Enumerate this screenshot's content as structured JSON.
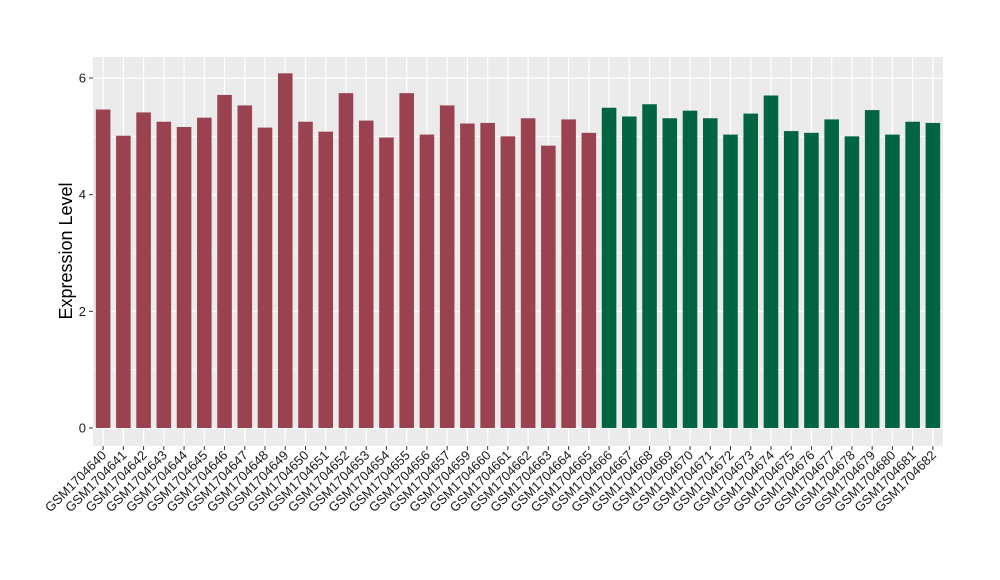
{
  "chart_data": {
    "type": "bar",
    "title": "",
    "xlabel": "",
    "ylabel": "Expression Level",
    "ylim": [
      0,
      6.25
    ],
    "yticks": [
      0,
      2,
      4,
      6
    ],
    "grid": true,
    "legend": "none",
    "colors": {
      "group1": "#9a4250",
      "group2": "#006540",
      "panel": "#ebebeb",
      "grid": "#ffffff"
    },
    "categories": [
      "GSM1704640",
      "GSM1704641",
      "GSM1704642",
      "GSM1704643",
      "GSM1704644",
      "GSM1704645",
      "GSM1704646",
      "GSM1704647",
      "GSM1704648",
      "GSM1704649",
      "GSM1704650",
      "GSM1704651",
      "GSM1704652",
      "GSM1704653",
      "GSM1704654",
      "GSM1704655",
      "GSM1704656",
      "GSM1704657",
      "GSM1704659",
      "GSM1704660",
      "GSM1704661",
      "GSM1704662",
      "GSM1704663",
      "GSM1704664",
      "GSM1704665",
      "GSM1704666",
      "GSM1704667",
      "GSM1704668",
      "GSM1704669",
      "GSM1704670",
      "GSM1704671",
      "GSM1704672",
      "GSM1704673",
      "GSM1704674",
      "GSM1704675",
      "GSM1704676",
      "GSM1704677",
      "GSM1704678",
      "GSM1704679",
      "GSM1704680",
      "GSM1704681",
      "GSM1704682"
    ],
    "values": [
      5.46,
      5.01,
      5.41,
      5.25,
      5.16,
      5.32,
      5.71,
      5.53,
      5.15,
      6.08,
      5.25,
      5.08,
      5.74,
      5.27,
      4.98,
      5.74,
      5.03,
      5.53,
      5.22,
      5.23,
      5.0,
      5.31,
      4.84,
      5.29,
      5.06,
      5.49,
      5.34,
      5.55,
      5.31,
      5.44,
      5.31,
      5.03,
      5.39,
      5.7,
      5.09,
      5.06,
      5.29,
      5.0,
      5.45,
      5.03,
      5.25,
      5.23
    ],
    "groups": [
      1,
      1,
      1,
      1,
      1,
      1,
      1,
      1,
      1,
      1,
      1,
      1,
      1,
      1,
      1,
      1,
      1,
      1,
      1,
      1,
      1,
      1,
      1,
      1,
      1,
      2,
      2,
      2,
      2,
      2,
      2,
      2,
      2,
      2,
      2,
      2,
      2,
      2,
      2,
      2,
      2,
      2
    ]
  }
}
